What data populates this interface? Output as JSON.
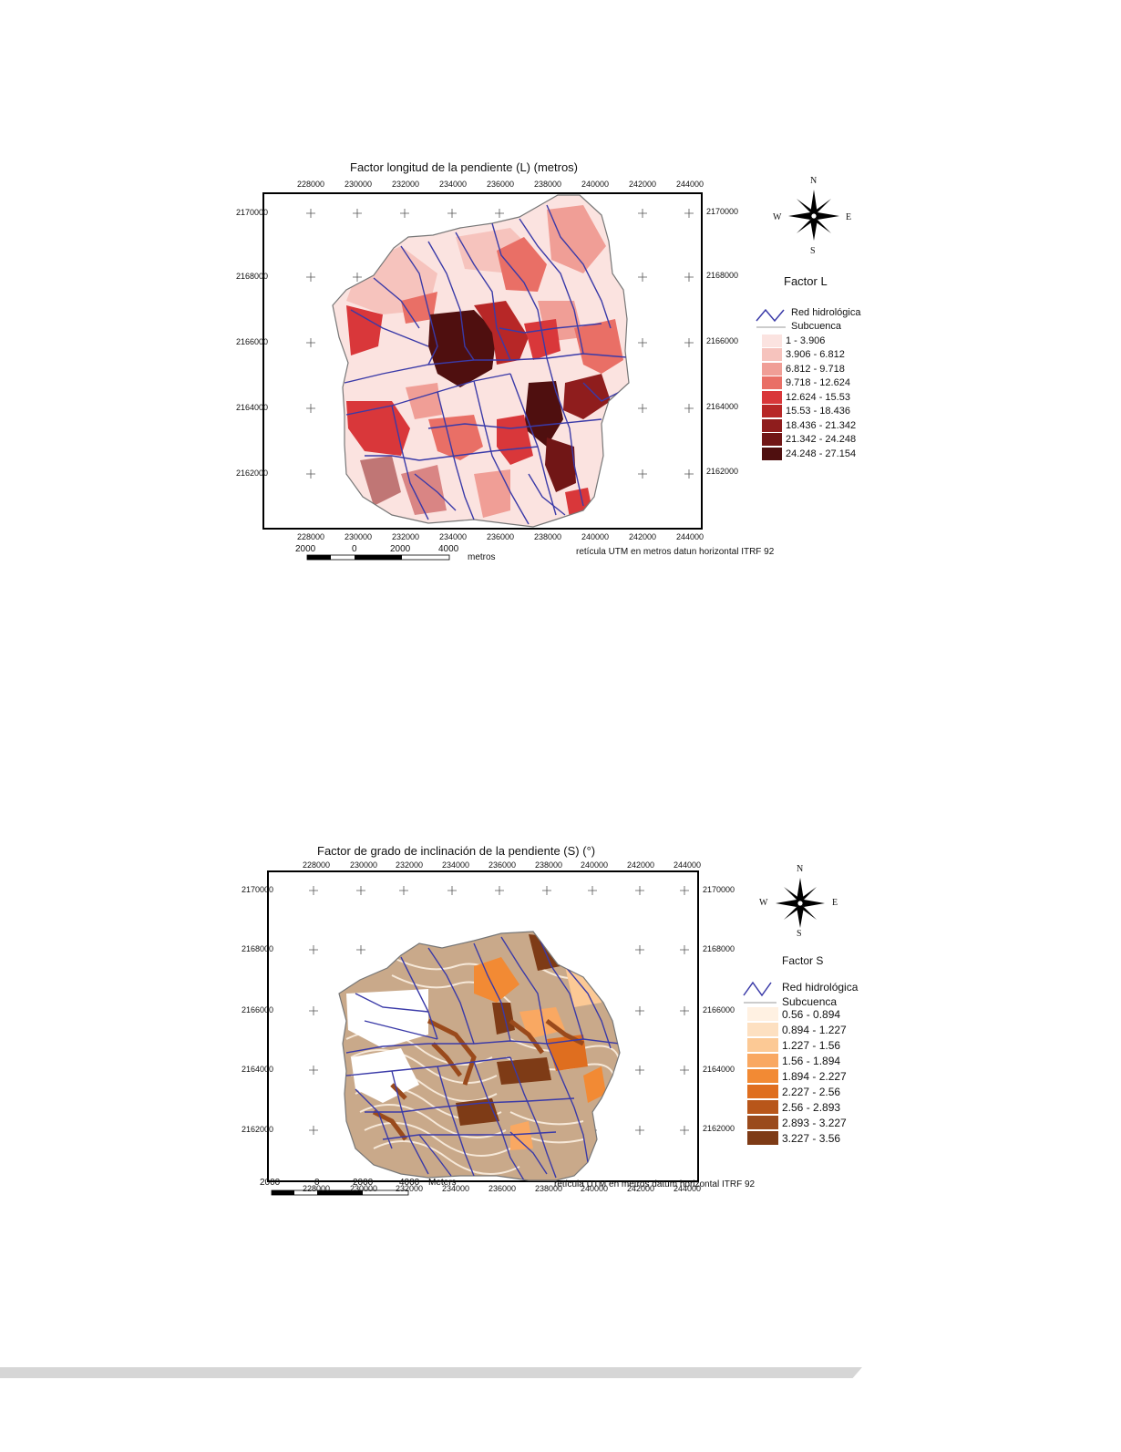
{
  "map_l": {
    "title": "Factor longitud de la pendiente (L) (metros)",
    "x_ticks": [
      "228000",
      "230000",
      "232000",
      "234000",
      "236000",
      "238000",
      "240000",
      "242000",
      "244000"
    ],
    "y_ticks": [
      "2170000",
      "2168000",
      "2166000",
      "2164000",
      "2162000"
    ],
    "compass": {
      "n": "N",
      "s": "S",
      "e": "E",
      "w": "W"
    },
    "legend_title": "Factor L",
    "legend_network": "Red hidrológica",
    "legend_subbasin": "Subcuenca",
    "classes": [
      {
        "label": "1 - 3.906",
        "color": "#fbe3e0"
      },
      {
        "label": "3.906 - 6.812",
        "color": "#f6c3bd"
      },
      {
        "label": "6.812 - 9.718",
        "color": "#f09e96"
      },
      {
        "label": "9.718 - 12.624",
        "color": "#e96f66"
      },
      {
        "label": "12.624 - 15.53",
        "color": "#d9373a"
      },
      {
        "label": "15.53 - 18.436",
        "color": "#b72727"
      },
      {
        "label": "18.436 - 21.342",
        "color": "#8f1d1d"
      },
      {
        "label": "21.342 - 24.248",
        "color": "#711616"
      },
      {
        "label": "24.248 - 27.154",
        "color": "#4f0f0f"
      }
    ],
    "scale_labels": [
      "2000",
      "0",
      "2000",
      "4000"
    ],
    "scale_unit": "metros",
    "datum_note": "retícula UTM en metros datun horizontal ITRF 92"
  },
  "map_s": {
    "title": "Factor de grado de inclinación de la pendiente (S) (°)",
    "x_ticks": [
      "228000",
      "230000",
      "232000",
      "234000",
      "236000",
      "238000",
      "240000",
      "242000",
      "244000"
    ],
    "y_ticks": [
      "2170000",
      "2168000",
      "2166000",
      "2164000",
      "2162000"
    ],
    "compass": {
      "n": "N",
      "s": "S",
      "e": "E",
      "w": "W"
    },
    "legend_title": "Factor S",
    "legend_network": "Red hidrológica",
    "legend_subbasin": "Subcuenca",
    "classes": [
      {
        "label": "0.56 - 0.894",
        "color": "#fff1e2"
      },
      {
        "label": "0.894 - 1.227",
        "color": "#fde0c1"
      },
      {
        "label": "1.227 - 1.56",
        "color": "#fcc995"
      },
      {
        "label": "1.56 - 1.894",
        "color": "#f9a862"
      },
      {
        "label": "1.894 - 2.227",
        "color": "#f28a34"
      },
      {
        "label": "2.227 - 2.56",
        "color": "#df6e1f"
      },
      {
        "label": "2.56 - 2.893",
        "color": "#b8561a"
      },
      {
        "label": "2.893 - 3.227",
        "color": "#9a4a1c"
      },
      {
        "label": "3.227 - 3.56",
        "color": "#7e3b16"
      }
    ],
    "scale_labels": [
      "2000",
      "0",
      "2000",
      "4000"
    ],
    "scale_unit": "Meters",
    "datum_note": "retícula UTM en metros datum horizontal ITRF 92"
  },
  "colors": {
    "river": "#3a3aa8",
    "frame": "#000000",
    "footer": "#d6d6d6"
  }
}
